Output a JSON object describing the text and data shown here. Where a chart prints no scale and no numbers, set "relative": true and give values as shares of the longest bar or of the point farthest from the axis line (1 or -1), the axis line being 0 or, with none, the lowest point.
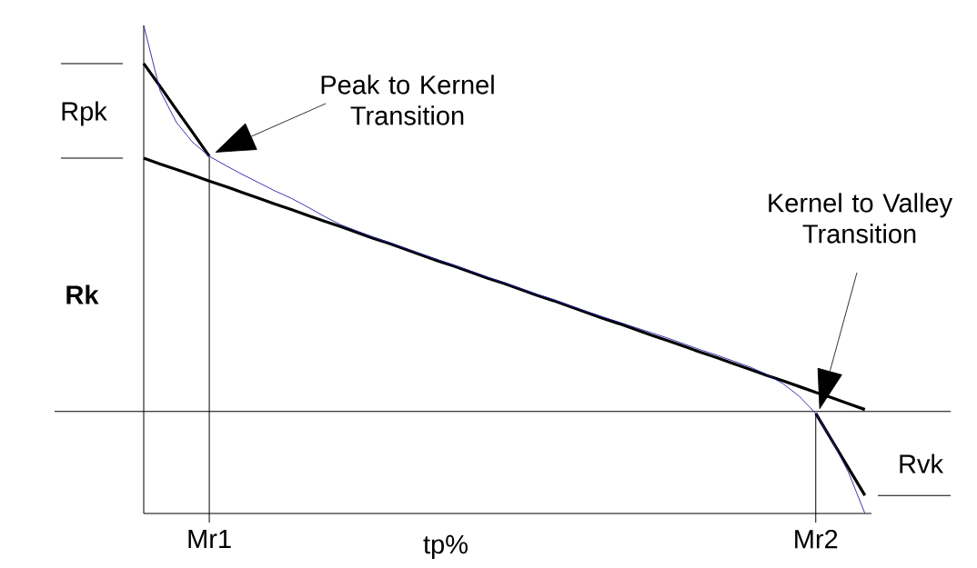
{
  "chart_data": {
    "type": "line",
    "relative": true,
    "xlabel": "tp%",
    "categories": [
      null,
      null,
      null,
      null,
      "Mr1",
      null,
      null,
      null,
      null,
      null,
      null,
      null,
      null,
      null,
      null,
      null,
      null,
      null,
      null,
      null,
      null,
      null,
      null,
      null,
      null,
      null,
      null,
      null,
      null,
      null,
      null,
      null,
      null,
      null,
      null,
      null,
      null,
      null,
      null,
      null,
      null,
      "Mr2",
      null,
      null,
      null
    ],
    "series": [
      {
        "color": "#2424a8",
        "values": [
          1.0,
          0.866,
          0.801,
          0.76,
          0.732,
          0.713,
          0.695,
          0.678,
          0.661,
          0.646,
          0.628,
          0.609,
          0.592,
          0.579,
          0.566,
          0.555,
          0.543,
          0.531,
          0.519,
          0.508,
          0.496,
          0.484,
          0.473,
          0.461,
          0.449,
          0.438,
          0.426,
          0.414,
          0.403,
          0.392,
          0.381,
          0.37,
          0.359,
          0.347,
          0.335,
          0.324,
          0.312,
          0.3,
          0.285,
          0.266,
          0.24,
          0.205,
          0.149,
          0.084,
          0
        ]
      },
      {
        "color": "#000000",
        "values": [
          0.728,
          0.716,
          0.705,
          0.693,
          0.681,
          0.67,
          0.658,
          0.646,
          0.634,
          0.623,
          0.611,
          0.599,
          0.588,
          0.576,
          0.564,
          0.553,
          0.541,
          0.529,
          0.517,
          0.506,
          0.494,
          0.482,
          0.471,
          0.459,
          0.447,
          0.436,
          0.424,
          0.412,
          0.4,
          0.389,
          0.377,
          0.365,
          0.354,
          0.342,
          0.33,
          0.319,
          0.307,
          0.295,
          0.283,
          0.272,
          0.26,
          0.248,
          0.237,
          0.225,
          0.213
        ]
      },
      {
        "color": "#000000",
        "values": [
          0.922,
          0.875,
          0.827,
          0.78,
          0.732,
          null,
          null,
          null,
          null,
          null,
          null,
          null,
          null,
          null,
          null,
          null,
          null,
          null,
          null,
          null,
          null,
          null,
          null,
          null,
          null,
          null,
          null,
          null,
          null,
          null,
          null,
          null,
          null,
          null,
          null,
          null,
          null,
          null,
          null,
          null,
          null,
          null,
          null,
          null,
          null
        ]
      },
      {
        "color": "#000000",
        "values": [
          null,
          null,
          null,
          null,
          null,
          null,
          null,
          null,
          null,
          null,
          null,
          null,
          null,
          null,
          null,
          null,
          null,
          null,
          null,
          null,
          null,
          null,
          null,
          null,
          null,
          null,
          null,
          null,
          null,
          null,
          null,
          null,
          null,
          null,
          null,
          null,
          null,
          null,
          null,
          null,
          null,
          0.205,
          0.149,
          0.093,
          0.037
        ]
      }
    ],
    "ref_lines": [
      {
        "axis": "x",
        "value": "Mr1"
      },
      {
        "axis": "x",
        "value": "Mr2"
      },
      {
        "axis": "y",
        "value": 0.209
      }
    ],
    "annotations": [
      "Rpk",
      "Rk",
      "Rvk",
      "Peak to Kernel Transition",
      "Kernel to Valley Transition"
    ]
  }
}
